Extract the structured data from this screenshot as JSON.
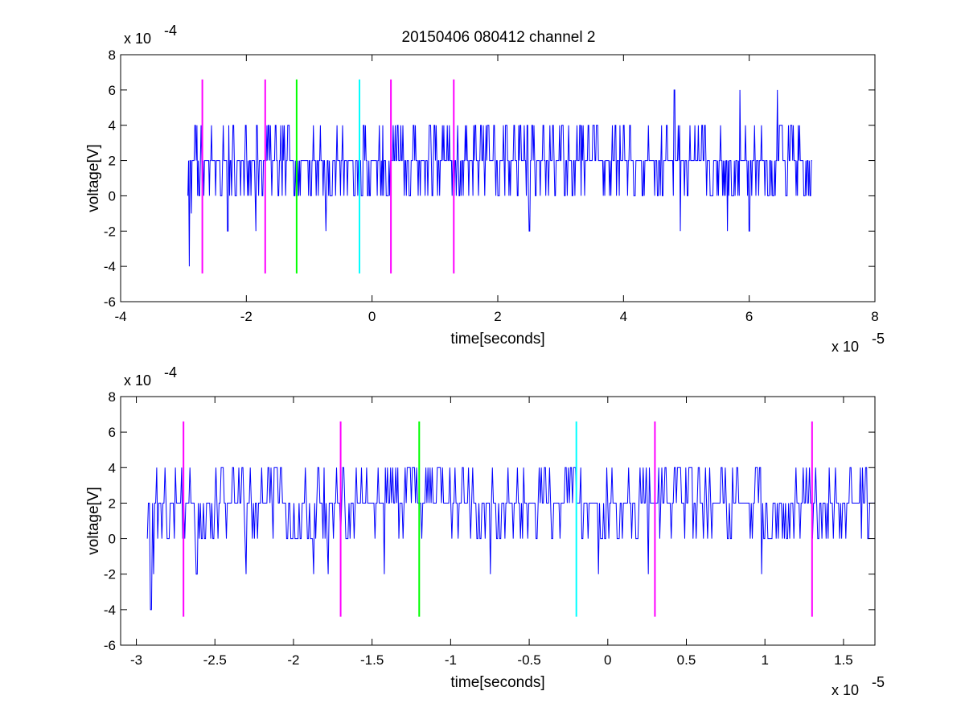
{
  "figure": {
    "title": "20150406 080412 channel 2"
  },
  "chart_data": [
    {
      "type": "line",
      "title": "20150406 080412 channel 2",
      "xlabel": "time[seconds]",
      "ylabel": "voltage[V]",
      "x_exponent_label": "x 10",
      "x_exponent": "-5",
      "y_exponent_label": "x 10",
      "y_exponent": "-4",
      "xlim": [
        -4,
        8
      ],
      "ylim": [
        -6,
        8
      ],
      "xticks": [
        -4,
        -2,
        0,
        2,
        4,
        6,
        8
      ],
      "xtick_labels": [
        "-4",
        "-2",
        "0",
        "2",
        "4",
        "6",
        "8"
      ],
      "yticks": [
        -6,
        -4,
        -2,
        0,
        2,
        4,
        6,
        8
      ],
      "ytick_labels": [
        "-6",
        "-4",
        "-2",
        "0",
        "2",
        "4",
        "6",
        "8"
      ],
      "grid": false,
      "series": [
        {
          "color": "#0000ff",
          "x_start": -2.93,
          "x_end": 7.0,
          "description_values": "noisy trace alternating among 0, 2, 4 with occasional -2, -4 and 6",
          "spikes": [
            {
              "x": -2.91,
              "y": -4
            },
            {
              "x": -2.88,
              "y": -1
            },
            {
              "x": -2.3,
              "y": -2
            },
            {
              "x": -1.85,
              "y": -2
            },
            {
              "x": -0.73,
              "y": -2
            },
            {
              "x": 2.5,
              "y": -2
            },
            {
              "x": 4.8,
              "y": 6
            },
            {
              "x": 5.85,
              "y": 6
            },
            {
              "x": 6.45,
              "y": 6
            },
            {
              "x": 6.0,
              "y": -2
            },
            {
              "x": 5.65,
              "y": -2
            },
            {
              "x": 4.9,
              "y": -2
            }
          ]
        }
      ],
      "vlines": [
        {
          "x": -2.7,
          "color": "#ff00ff"
        },
        {
          "x": -1.7,
          "color": "#ff00ff"
        },
        {
          "x": -1.2,
          "color": "#00ff00"
        },
        {
          "x": -0.2,
          "color": "#00ffff"
        },
        {
          "x": 0.3,
          "color": "#ff00ff"
        },
        {
          "x": 1.3,
          "color": "#ff00ff"
        }
      ],
      "vline_range": [
        -4.4,
        6.6
      ]
    },
    {
      "type": "line",
      "title": "",
      "xlabel": "time[seconds]",
      "ylabel": "voltage[V]",
      "x_exponent_label": "x 10",
      "x_exponent": "-5",
      "y_exponent_label": "x 10",
      "y_exponent": "-4",
      "xlim": [
        -3.1,
        1.7
      ],
      "ylim": [
        -6,
        8
      ],
      "xticks": [
        -3,
        -2.5,
        -2,
        -1.5,
        -1,
        -0.5,
        0,
        0.5,
        1,
        1.5
      ],
      "xtick_labels": [
        "-3",
        "-2.5",
        "-2",
        "-1.5",
        "-1",
        "-0.5",
        "0",
        "0.5",
        "1",
        "1.5"
      ],
      "yticks": [
        -6,
        -4,
        -2,
        0,
        2,
        4,
        6,
        8
      ],
      "ytick_labels": [
        "-6",
        "-4",
        "-2",
        "0",
        "2",
        "4",
        "6",
        "8"
      ],
      "grid": false,
      "series": [
        {
          "color": "#0000ff",
          "x_start": -2.93,
          "x_end": 1.7,
          "description_values": "noisy trace alternating among 0, 2, 4 with occasional -2 and -4",
          "spikes": [
            {
              "x": -2.91,
              "y": -4
            },
            {
              "x": -2.89,
              "y": -2
            },
            {
              "x": -2.82,
              "y": 4
            },
            {
              "x": -2.62,
              "y": -2
            },
            {
              "x": -2.3,
              "y": -2
            },
            {
              "x": -1.87,
              "y": -2
            },
            {
              "x": -1.78,
              "y": -2
            },
            {
              "x": -1.42,
              "y": -2
            },
            {
              "x": -0.75,
              "y": -2
            },
            {
              "x": -0.06,
              "y": -2
            },
            {
              "x": 0.26,
              "y": -2
            },
            {
              "x": 0.98,
              "y": -2
            }
          ]
        }
      ],
      "vlines": [
        {
          "x": -2.7,
          "color": "#ff00ff"
        },
        {
          "x": -1.7,
          "color": "#ff00ff"
        },
        {
          "x": -1.2,
          "color": "#00ff00"
        },
        {
          "x": -0.2,
          "color": "#00ffff"
        },
        {
          "x": 0.3,
          "color": "#ff00ff"
        },
        {
          "x": 1.3,
          "color": "#ff00ff"
        }
      ],
      "vline_range": [
        -4.4,
        6.6
      ]
    }
  ]
}
